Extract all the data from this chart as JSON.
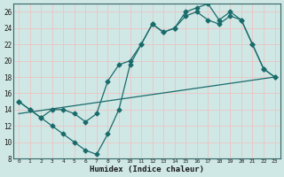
{
  "xlabel": "Humidex (Indice chaleur)",
  "xlim": [
    -0.5,
    23.5
  ],
  "ylim": [
    8,
    27
  ],
  "yticks": [
    8,
    10,
    12,
    14,
    16,
    18,
    20,
    22,
    24,
    26
  ],
  "xticks": [
    0,
    1,
    2,
    3,
    4,
    5,
    6,
    7,
    8,
    9,
    10,
    11,
    12,
    13,
    14,
    15,
    16,
    17,
    18,
    19,
    20,
    21,
    22,
    23
  ],
  "bg_color": "#cfe8e5",
  "grid_color": "#e8c8c8",
  "line_color": "#1a6b6b",
  "line1_x": [
    0,
    1,
    2,
    3,
    4,
    5,
    6,
    7,
    8,
    9,
    10,
    11,
    12,
    13,
    14,
    15,
    16,
    17,
    18,
    19,
    20,
    21,
    22,
    23
  ],
  "line1_y": [
    15,
    14,
    13,
    12,
    11,
    10,
    9,
    8.5,
    11,
    14,
    19.5,
    22,
    24.5,
    23.5,
    24,
    26,
    26.5,
    27,
    25,
    26,
    25,
    22,
    19,
    18
  ],
  "line2_x": [
    0,
    1,
    2,
    3,
    4,
    5,
    6,
    7,
    8,
    9,
    10,
    11,
    12,
    13,
    14,
    15,
    16,
    17,
    18,
    19,
    20,
    21,
    22,
    23
  ],
  "line2_y": [
    15,
    14,
    13,
    14,
    14,
    13.5,
    12.5,
    13.5,
    17.5,
    19.5,
    20,
    22,
    24.5,
    23.5,
    24,
    25.5,
    26,
    25,
    24.5,
    25.5,
    25,
    22,
    19,
    18
  ],
  "line3_x": [
    0,
    23
  ],
  "line3_y": [
    13.5,
    18
  ]
}
